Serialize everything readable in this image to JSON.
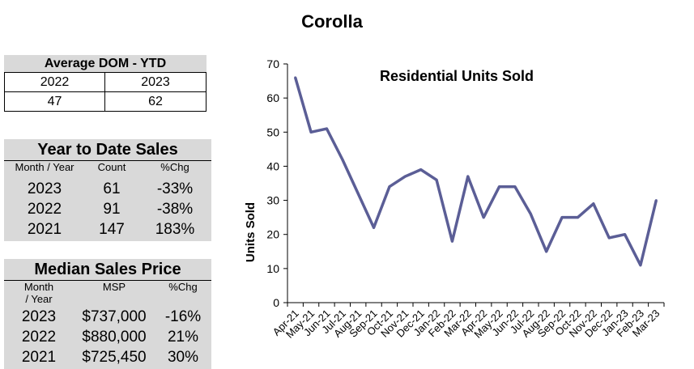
{
  "page_title": "Corolla",
  "dom": {
    "header": "Average DOM - YTD",
    "years": [
      "2022",
      "2023"
    ],
    "values": [
      "47",
      "62"
    ]
  },
  "ytd_sales": {
    "header": "Year to Date Sales",
    "columns": [
      "Month / Year",
      "Count",
      "%Chg"
    ],
    "rows": [
      {
        "year": "2023",
        "count": "61",
        "chg": "-33%"
      },
      {
        "year": "2022",
        "count": "91",
        "chg": "-38%"
      },
      {
        "year": "2021",
        "count": "147",
        "chg": "183%"
      }
    ]
  },
  "median_price": {
    "header": "Median Sales Price",
    "columns": [
      "Month / Year",
      "MSP",
      "%Chg"
    ],
    "rows": [
      {
        "year": "2023",
        "msp": "$737,000",
        "chg": "-16%"
      },
      {
        "year": "2022",
        "msp": "$880,000",
        "chg": "21%"
      },
      {
        "year": "2021",
        "msp": "$725,450",
        "chg": "30%"
      }
    ]
  },
  "chart_data": {
    "type": "line",
    "title": "Residential Units Sold",
    "xlabel": "",
    "ylabel": "Units Sold",
    "ylim": [
      0,
      70
    ],
    "yticks": [
      0,
      10,
      20,
      30,
      40,
      50,
      60,
      70
    ],
    "categories": [
      "Apr-21",
      "May-21",
      "Jun-21",
      "Jul-21",
      "Aug-21",
      "Sep-21",
      "Oct-21",
      "Nov-21",
      "Dec-21",
      "Jan-22",
      "Feb-22",
      "Mar-22",
      "Apr-22",
      "May-22",
      "Jun-22",
      "Jul-22",
      "Aug-22",
      "Sep-22",
      "Oct-22",
      "Nov-22",
      "Dec-22",
      "Jan-23",
      "Feb-23",
      "Mar-23"
    ],
    "series": [
      {
        "values": [
          66,
          50,
          51,
          42,
          32,
          22,
          34,
          37,
          39,
          36,
          18,
          37,
          25,
          34,
          34,
          26,
          15,
          25,
          25,
          29,
          19,
          20,
          11,
          30
        ]
      }
    ],
    "line_color": "#5b5e96",
    "grid": false
  }
}
